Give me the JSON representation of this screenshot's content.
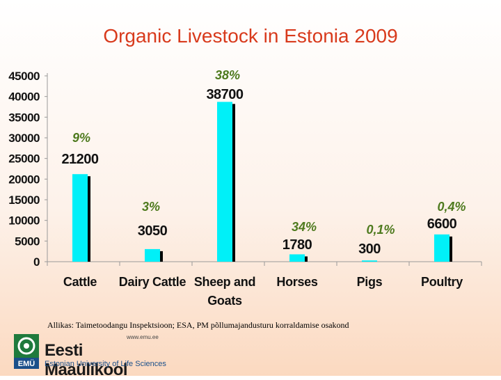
{
  "slide": {
    "title": "Organic Livestock in Estonia 2009",
    "source": "Allikas: Taimetoodangu Inspektsioon; ESA, PM põllumajandusturu korraldamise osakond"
  },
  "logo": {
    "name": "Eesti Maaülikool",
    "url": "www.emu.ee",
    "subtitle": "Estonian University of Life Sciences",
    "mark_text": "EMÜ"
  },
  "colors": {
    "bar": "#00f0f8",
    "bar_shadow": "#000000",
    "percent_label": "#4e7a1e",
    "title": "#d83a1c",
    "axis": "#999999"
  },
  "chart_data": {
    "type": "bar",
    "title": "Organic Livestock in Estonia 2009",
    "xlabel": "",
    "ylabel": "",
    "ylim": [
      0,
      45000
    ],
    "yticks": [
      "0",
      "5000",
      "10000",
      "15000",
      "20000",
      "25000",
      "30000",
      "35000",
      "40000",
      "45000"
    ],
    "categories": [
      "Cattle",
      "Dairy Cattle",
      "Sheep and Goats",
      "Horses",
      "Pigs",
      "Poultry"
    ],
    "category_lines": [
      [
        "Cattle"
      ],
      [
        "Dairy Cattle"
      ],
      [
        "Sheep and",
        "Goats"
      ],
      [
        "Horses"
      ],
      [
        "Pigs"
      ],
      [
        "Poultry"
      ]
    ],
    "values": [
      21200,
      3050,
      38700,
      1780,
      300,
      6600
    ],
    "value_labels": [
      "21200",
      "3050",
      "38700",
      "1780",
      "300",
      "6600"
    ],
    "percent_labels": [
      "9%",
      "3%",
      "38%",
      "34%",
      "0,1%",
      "0,4%"
    ],
    "grid": false,
    "legend": "none"
  }
}
